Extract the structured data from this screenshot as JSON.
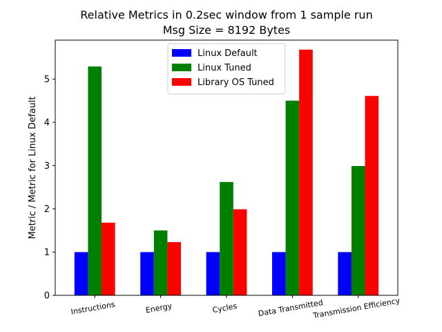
{
  "chart_data": {
    "type": "bar",
    "title": "Relative Metrics in 0.2sec window from 1 sample run",
    "subtitle": "Msg Size = 8192 Bytes",
    "xlabel": "",
    "ylabel": "Metric / Metric for Linux Default",
    "categories": [
      "Instructions",
      "Energy",
      "Cycles",
      "Data Transmitted",
      "Transmission Efficiency"
    ],
    "series": [
      {
        "name": "Linux Default",
        "color": "#0000ff",
        "values": [
          1.0,
          1.0,
          1.0,
          1.0,
          1.0
        ]
      },
      {
        "name": "Linux Tuned",
        "color": "#008000",
        "values": [
          5.29,
          1.5,
          2.62,
          4.5,
          2.99
        ]
      },
      {
        "name": "Library OS Tuned",
        "color": "#ff0000",
        "values": [
          1.68,
          1.23,
          1.99,
          5.68,
          4.61
        ]
      }
    ],
    "ylim": [
      0,
      5.9
    ],
    "yticks": [
      0,
      1,
      2,
      3,
      4,
      5
    ],
    "grid": false,
    "legend": "top-center"
  }
}
